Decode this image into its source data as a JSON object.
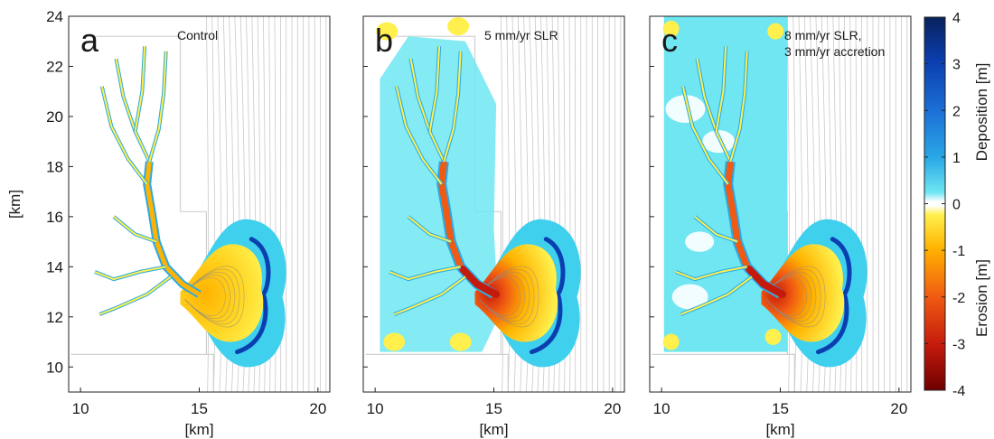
{
  "chart_data": {
    "type": "heatmap",
    "panels": [
      {
        "letter": "a",
        "title_lines": [
          "Control"
        ],
        "scenario": "control"
      },
      {
        "letter": "b",
        "title_lines": [
          "5 mm/yr SLR"
        ],
        "scenario": "slr5"
      },
      {
        "letter": "c",
        "title_lines": [
          "8 mm/yr SLR,",
          "3 mm/yr accretion"
        ],
        "scenario": "slr8"
      }
    ],
    "xlabel": "[km]",
    "ylabel": "[km]",
    "xlim": [
      9.5,
      20.5
    ],
    "ylim": [
      9,
      24
    ],
    "xticks": [
      10,
      15,
      20
    ],
    "yticks": [
      10,
      12,
      14,
      16,
      18,
      20,
      22,
      24
    ],
    "colorbar": {
      "range": [
        -4,
        4
      ],
      "ticks": [
        4,
        3,
        2,
        1,
        0,
        -1,
        -2,
        -3,
        -4
      ],
      "positive_label": "Deposition [m]",
      "negative_label": "Erosion [m]",
      "colors": {
        "max": "#08225c",
        "plus3": "#0b3fb0",
        "plus2": "#1c6fd6",
        "plus1": "#2aa9e6",
        "near_zero_pos": "#6fe6f2",
        "zero": "#ffffff",
        "near_zero_neg": "#fff04d",
        "minus1": "#ffb300",
        "minus2": "#f05a12",
        "minus3": "#c41a0c",
        "min": "#6e0000"
      }
    }
  }
}
